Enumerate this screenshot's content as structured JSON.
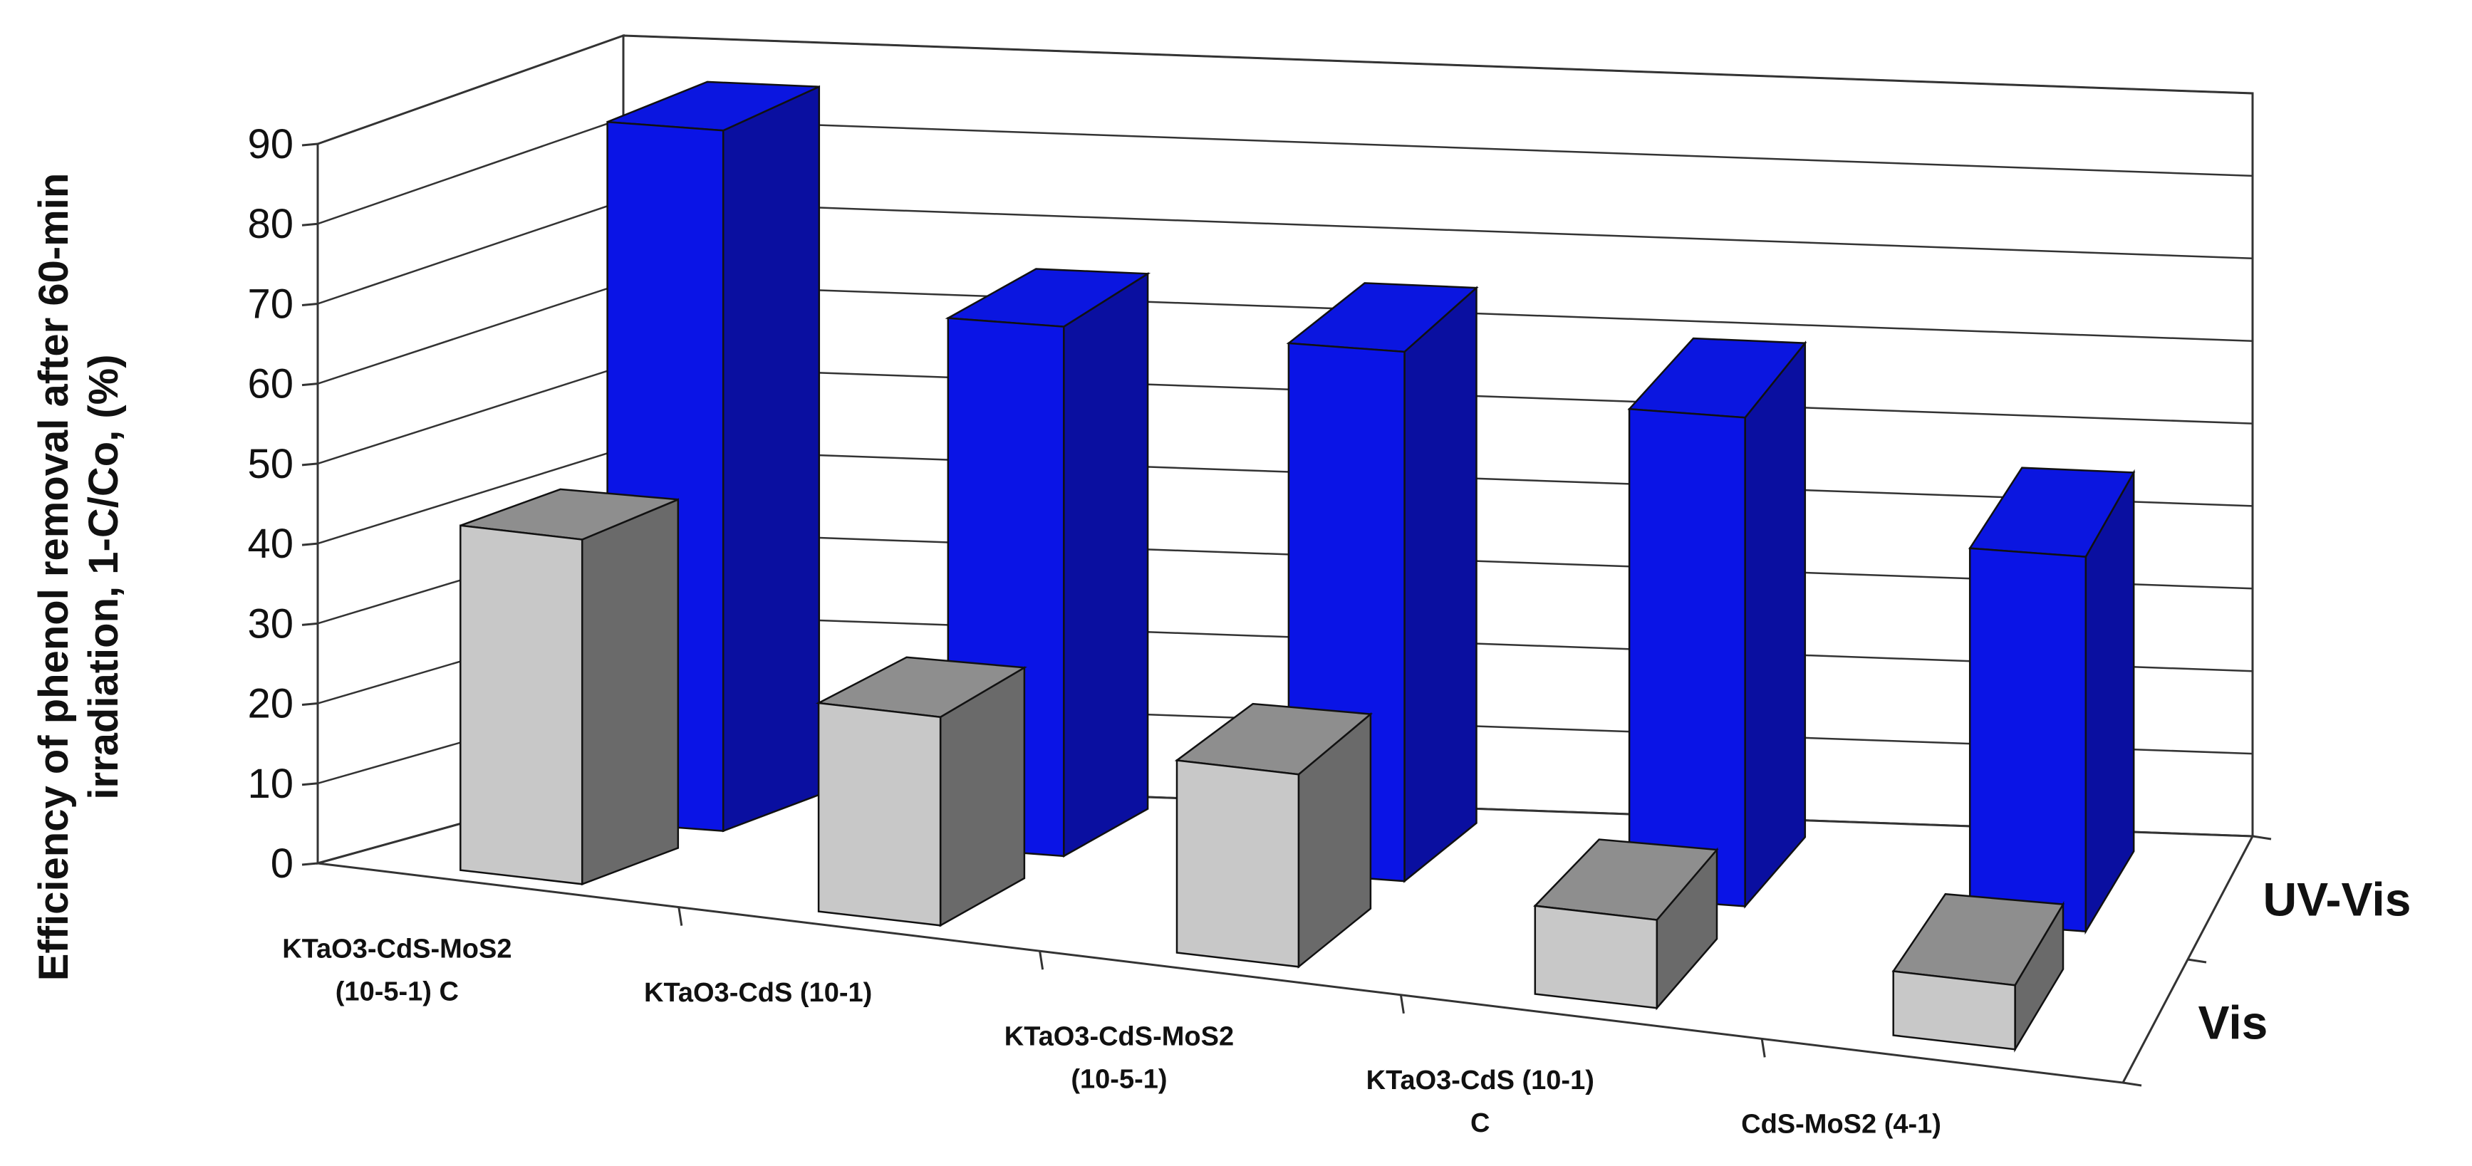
{
  "chart_data": {
    "type": "bar",
    "projection": "3d",
    "title": "",
    "xlabel": "",
    "ylabel": [
      "Efficiency of phenol removal after 60-min",
      "irradiation, 1-C/Co, (%)"
    ],
    "ylim": [
      0,
      90
    ],
    "ytick_labels": [
      "0",
      "10",
      "20",
      "30",
      "40",
      "50",
      "60",
      "70",
      "80",
      "90"
    ],
    "grid": true,
    "legend": "none",
    "categories": [
      [
        "KTaO3-CdS-MoS2",
        "(10-5-1) C"
      ],
      [
        "KTaO3-CdS (10-1)"
      ],
      [
        "KTaO3-CdS-MoS2",
        "(10-5-1)"
      ],
      [
        "KTaO3-CdS (10-1)",
        "C"
      ],
      [
        "CdS-MoS2 (4-1)"
      ]
    ],
    "series": [
      {
        "name": "Vis",
        "values": [
          43,
          26,
          24,
          11,
          8
        ],
        "color": "#c8c8c8"
      },
      {
        "name": "UV-Vis",
        "values": [
          86,
          65,
          65,
          60,
          46
        ],
        "color": "#0a14e6"
      }
    ]
  }
}
